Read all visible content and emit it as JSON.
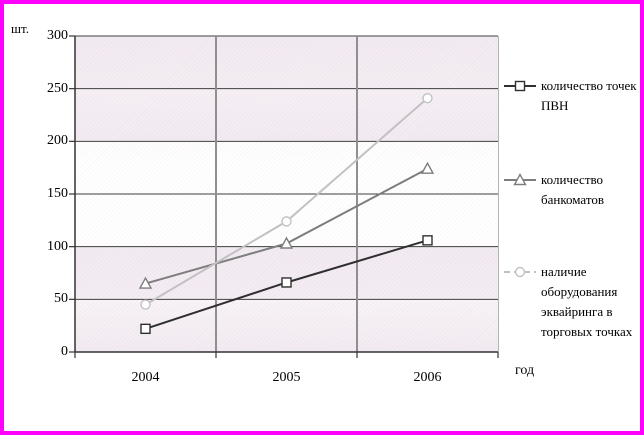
{
  "chart_data": {
    "type": "line",
    "title": "",
    "xlabel": "год",
    "ylabel": "шт.",
    "categories": [
      "2004",
      "2005",
      "2006"
    ],
    "ylim": [
      0,
      300
    ],
    "ytick_step": 50,
    "yticks": [
      0,
      50,
      100,
      150,
      200,
      250,
      300
    ],
    "grid": "on",
    "legend_position": "right",
    "series": [
      {
        "name": "количество точек ПВН",
        "label": "количество точек\nПВН",
        "marker": "square",
        "color": "#2f2f2f",
        "legend_dash": false,
        "values": [
          22,
          66,
          106
        ]
      },
      {
        "name": "количество банкоматов",
        "label": "количество\nбанкоматов",
        "marker": "triangle",
        "color": "#7d7d7d",
        "legend_dash": false,
        "values": [
          65,
          103,
          174
        ]
      },
      {
        "name": "наличие оборудования эквайринга в торговых точках",
        "label": "наличие\nоборудования\nэквайринга в\nторговых точках",
        "marker": "circle",
        "color": "#c2c2c2",
        "legend_dash": true,
        "values": [
          45,
          124,
          241
        ]
      }
    ]
  },
  "frame": {
    "border_color": "#ff00ff",
    "plot_band_pink": "#f3ecf2",
    "gridline_color": "#3f3f3f",
    "vertical_gridline_color": "#8f8f8f"
  }
}
